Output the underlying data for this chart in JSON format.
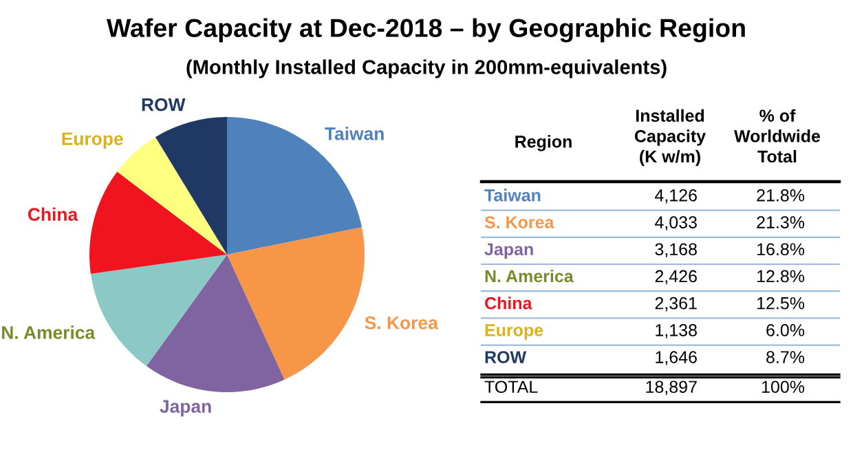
{
  "chart_data": [
    {
      "type": "pie",
      "title": "Wafer Capacity at Dec-2018 – by Geographic Region",
      "subtitle": "(Monthly Installed Capacity in 200mm-equivalents)",
      "categories": [
        "Taiwan",
        "S. Korea",
        "Japan",
        "N. America",
        "China",
        "Europe",
        "ROW"
      ],
      "values": [
        21.8,
        21.3,
        16.8,
        12.8,
        12.5,
        6.0,
        8.7
      ],
      "colors": [
        "#4f81bd",
        "#f79646",
        "#8064a2",
        "#8cc8c6",
        "#f0141e",
        "#ffff80",
        "#1f3864"
      ]
    },
    {
      "type": "other",
      "annotations": [
        "Region",
        "Installed\nCapacity\n(K w/m)",
        "% of\nWorldwide\nTotal",
        "Taiwan",
        "4,126",
        "21.8%",
        "S. Korea",
        "4,033",
        "21.3%",
        "Japan",
        "3,168",
        "16.8%",
        "N. America",
        "2,426",
        "12.8%",
        "China",
        "2,361",
        "12.5%",
        "Europe",
        "1,138",
        "6.0%",
        "ROW",
        "1,646",
        "8.7%",
        "TOTAL",
        "18,897",
        "100%"
      ]
    }
  ]
}
